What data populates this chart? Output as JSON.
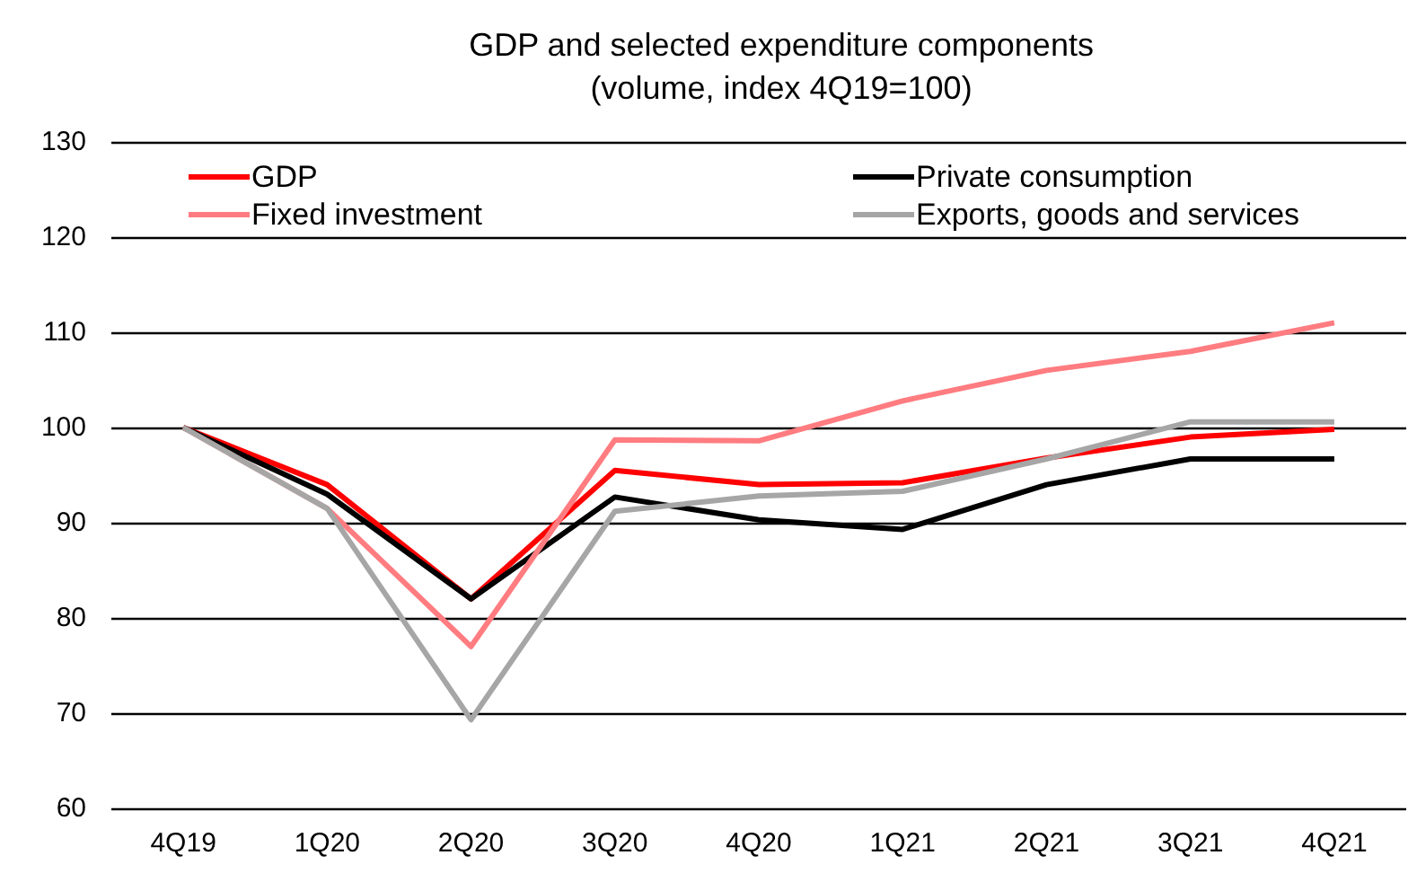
{
  "chart_data": {
    "type": "line",
    "title": "GDP and selected expenditure components\n(volume, index 4Q19=100)",
    "categories": [
      "4Q19",
      "1Q20",
      "2Q20",
      "3Q20",
      "4Q20",
      "1Q21",
      "2Q21",
      "3Q21",
      "4Q21"
    ],
    "series": [
      {
        "name": "GDP",
        "color": "#ff0000",
        "values": [
          100,
          94,
          82,
          95.5,
          94,
          94.2,
          96.8,
          99,
          99.8
        ]
      },
      {
        "name": "Private consumption",
        "color": "#000000",
        "values": [
          100,
          93,
          82,
          92.7,
          90.3,
          89.3,
          94,
          96.7,
          96.7
        ]
      },
      {
        "name": "Fixed investment",
        "color": "#ff7c80",
        "values": [
          100,
          91.5,
          77,
          98.7,
          98.6,
          102.8,
          106,
          108,
          111
        ]
      },
      {
        "name": "Exports, goods and services",
        "color": "#a6a6a6",
        "values": [
          100,
          91.5,
          69.3,
          91.2,
          92.8,
          93.3,
          96.7,
          100.6,
          100.6
        ]
      }
    ],
    "ylim": [
      60,
      130
    ],
    "yticks": [
      60,
      70,
      80,
      90,
      100,
      110,
      120,
      130
    ],
    "grid": "y",
    "legend": "top",
    "marker": "none",
    "line_style": "solid"
  }
}
